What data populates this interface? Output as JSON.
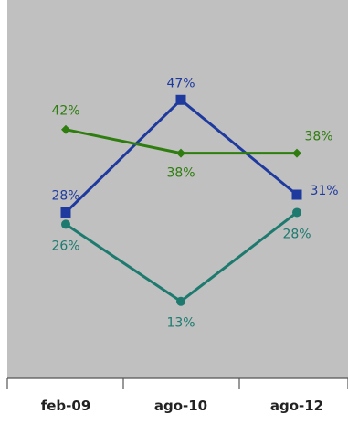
{
  "chart_data": {
    "type": "line",
    "categories": [
      "feb-09",
      "ago-10",
      "ago-12"
    ],
    "ylim": [
      0,
      60
    ],
    "grid": false,
    "legend": "none",
    "plot_background": "#c0c0c0",
    "series": [
      {
        "values": [
          28,
          47,
          31
        ],
        "labels": [
          "28%",
          "47%",
          "31%"
        ],
        "color": "#1f3a9e",
        "marker": "square"
      },
      {
        "values": [
          42,
          38,
          38
        ],
        "labels": [
          "42%",
          "38%",
          "38%"
        ],
        "color": "#2e7d0e",
        "marker": "diamond"
      },
      {
        "values": [
          26,
          13,
          28
        ],
        "labels": [
          "26%",
          "13%",
          "28%"
        ],
        "color": "#1e7a6e",
        "marker": "circle"
      }
    ]
  }
}
